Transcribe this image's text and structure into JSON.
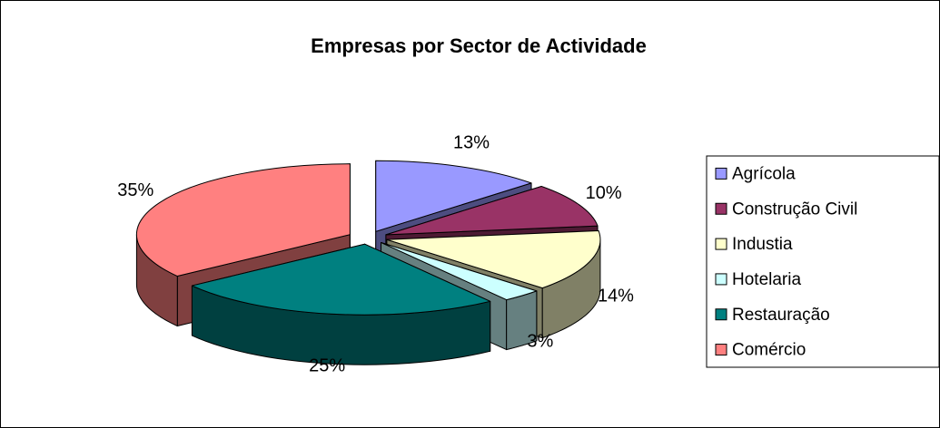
{
  "chart_data": {
    "type": "pie",
    "title": "Empresas por Sector de Actividade",
    "categories": [
      "Agrícola",
      "Construção Civil",
      "Industia",
      "Hotelaria",
      "Restauração",
      "Comércio"
    ],
    "values": [
      13,
      10,
      14,
      3,
      25,
      35
    ],
    "value_labels": [
      "13%",
      "10%",
      "14%",
      "3%",
      "25%",
      "35%"
    ],
    "colors": [
      "#9999ff",
      "#993366",
      "#ffffcc",
      "#ccffff",
      "#008080",
      "#ff8080"
    ],
    "three_d": true,
    "exploded": true,
    "legend": "right"
  }
}
